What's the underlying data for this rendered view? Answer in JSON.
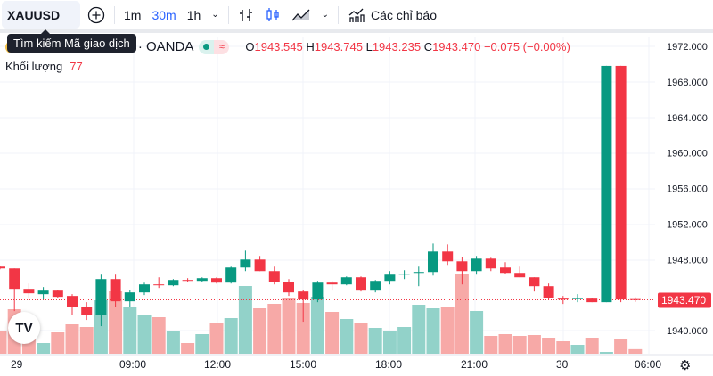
{
  "toolbar": {
    "symbol": "XAUUSD",
    "add_icon": "plus-circle-icon",
    "intervals": [
      "1m",
      "30m",
      "1h"
    ],
    "active_interval": "30m",
    "indicators_label": "Các chỉ báo"
  },
  "tooltip": "Tìm kiếm Mã giao dịch",
  "legend": {
    "title": "30 · OANDA",
    "o_label": "O",
    "o": "1943.545",
    "h_label": "H",
    "h": "1943.745",
    "l_label": "L",
    "l": "1943.235",
    "c_label": "C",
    "c": "1943.470",
    "change": "−0.075 (−0.00%)"
  },
  "volume": {
    "label": "Khối lượng",
    "value": "77"
  },
  "colors": {
    "up": "#089981",
    "down": "#f23645",
    "vol_up": "#92d2c9",
    "vol_down": "#f7a9a7",
    "accent": "#2962ff"
  },
  "chart_data": {
    "type": "candlestick",
    "price_ticks": [
      "1972.000",
      "1968.000",
      "1964.000",
      "1960.000",
      "1956.000",
      "1952.000",
      "1948.000",
      "1940.000"
    ],
    "ylim": [
      1937.5,
      1973
    ],
    "time_labels": [
      "29",
      "09:00",
      "12:00",
      "15:00",
      "18:00",
      "21:00",
      "30",
      "06:00"
    ],
    "last_price": "1943.470",
    "ohlc": [
      [
        1947.2,
        1947.3,
        1946.9,
        1947.0
      ],
      [
        1947.0,
        1947.0,
        1942.2,
        1944.7
      ],
      [
        1944.7,
        1945.3,
        1943.6,
        1944.2
      ],
      [
        1944.1,
        1944.9,
        1943.5,
        1944.5
      ],
      [
        1944.5,
        1944.6,
        1943.7,
        1943.8
      ],
      [
        1943.9,
        1944.1,
        1941.8,
        1942.7
      ],
      [
        1942.7,
        1943.2,
        1941.2,
        1941.8
      ],
      [
        1941.8,
        1946.3,
        1940.5,
        1945.8
      ],
      [
        1945.8,
        1946.3,
        1942.7,
        1943.3
      ],
      [
        1943.3,
        1944.6,
        1942.7,
        1944.3
      ],
      [
        1944.3,
        1945.4,
        1944.0,
        1945.2
      ],
      [
        1945.2,
        1946.0,
        1944.8,
        1945.1
      ],
      [
        1945.1,
        1945.8,
        1945.0,
        1945.7
      ],
      [
        1945.7,
        1945.9,
        1945.5,
        1945.65
      ],
      [
        1945.6,
        1946.0,
        1945.5,
        1945.9
      ],
      [
        1945.9,
        1946.0,
        1945.3,
        1945.4
      ],
      [
        1945.4,
        1947.2,
        1945.3,
        1947.1
      ],
      [
        1947.1,
        1949.0,
        1946.7,
        1948.0
      ],
      [
        1948.0,
        1948.4,
        1946.7,
        1946.7
      ],
      [
        1946.7,
        1947.2,
        1945.2,
        1945.5
      ],
      [
        1945.5,
        1945.8,
        1943.9,
        1944.3
      ],
      [
        1944.4,
        1944.6,
        1941.0,
        1943.5
      ],
      [
        1943.5,
        1945.6,
        1943.2,
        1945.4
      ],
      [
        1945.4,
        1945.6,
        1944.5,
        1945.2
      ],
      [
        1945.2,
        1946.1,
        1945.1,
        1946.0
      ],
      [
        1946.0,
        1946.1,
        1944.4,
        1944.5
      ],
      [
        1944.5,
        1945.7,
        1944.3,
        1945.6
      ],
      [
        1945.6,
        1946.7,
        1945.2,
        1946.3
      ],
      [
        1946.4,
        1946.8,
        1945.8,
        1946.4
      ],
      [
        1946.6,
        1947.2,
        1945.0,
        1946.6
      ],
      [
        1946.6,
        1949.8,
        1946.2,
        1948.9
      ],
      [
        1948.9,
        1949.7,
        1947.4,
        1947.8
      ],
      [
        1947.8,
        1948.3,
        1945.2,
        1946.7
      ],
      [
        1946.7,
        1948.4,
        1946.3,
        1948.1
      ],
      [
        1948.1,
        1948.2,
        1946.7,
        1947.0
      ],
      [
        1947.1,
        1947.7,
        1946.4,
        1946.5
      ],
      [
        1946.5,
        1947.2,
        1946.0,
        1946.0
      ],
      [
        1946.0,
        1946.0,
        1944.4,
        1945.0
      ],
      [
        1945.0,
        1945.3,
        1943.5,
        1943.7
      ],
      [
        1943.6,
        1943.9,
        1943.0,
        1943.55
      ],
      [
        1943.6,
        1944.1,
        1943.2,
        1943.65
      ],
      [
        1943.6,
        1943.7,
        1943.2,
        1943.2
      ],
      [
        1943.2,
        1969.8,
        1943.2,
        1969.8
      ],
      [
        1969.8,
        1969.8,
        1943.2,
        1943.5
      ],
      [
        1943.545,
        1943.745,
        1943.235,
        1943.47
      ]
    ],
    "volumes": [
      375,
      750,
      300,
      180,
      360,
      495,
      450,
      900,
      1050,
      795,
      645,
      615,
      375,
      180,
      330,
      525,
      600,
      1140,
      765,
      840,
      930,
      855,
      960,
      705,
      585,
      525,
      435,
      390,
      450,
      825,
      765,
      795,
      1350,
      720,
      300,
      330,
      300,
      315,
      270,
      210,
      150,
      270,
      30,
      240,
      77
    ]
  }
}
